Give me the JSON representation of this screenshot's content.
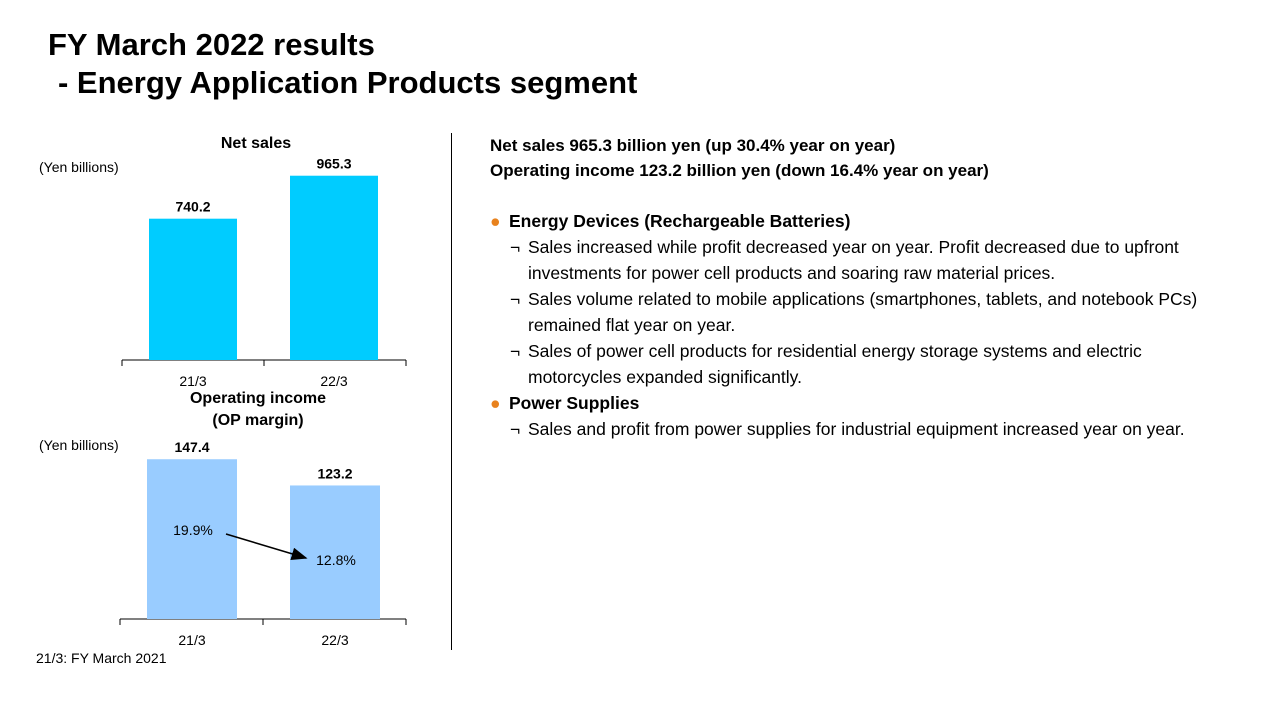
{
  "page": {
    "title_line1": "FY March 2022 results",
    "title_line2": "- Energy Application Products segment",
    "footnote": "21/3: FY March 2021"
  },
  "colors": {
    "net_sales_bar": "#00ccff",
    "op_income_bar": "#99ccff",
    "bullet_dot": "#e8821e"
  },
  "chart_data": [
    {
      "type": "bar",
      "title": "Net sales",
      "ylabel": "(Yen billions)",
      "categories": [
        "21/3",
        "22/3"
      ],
      "values": [
        740.2,
        965.3
      ],
      "value_labels": [
        "740.2",
        "965.3"
      ],
      "ylim": [
        0,
        1100
      ],
      "grid": false,
      "legend": "none"
    },
    {
      "type": "bar",
      "title": "Operating income (OP margin)",
      "title_line1": "Operating income",
      "title_line2": "(OP margin)",
      "ylabel": "(Yen billions)",
      "categories": [
        "21/3",
        "22/3"
      ],
      "values": [
        147.4,
        123.2
      ],
      "value_labels": [
        "147.4",
        "123.2"
      ],
      "margins": [
        "19.9%",
        "12.8%"
      ],
      "ylim": [
        0,
        155
      ],
      "grid": false,
      "legend": "none"
    }
  ],
  "summary": {
    "line1": "Net sales 965.3 billion yen (up 30.4% year on year)",
    "line2": "Operating income 123.2 billion yen (down 16.4% year on year)"
  },
  "sections": {
    "marker": "●",
    "bullet_marker": "¬",
    "energy_devices": {
      "heading": "Energy Devices (Rechargeable Batteries)",
      "bullets": [
        "Sales increased while profit decreased year on year. Profit decreased due to upfront investments for power cell products and soaring raw material prices.",
        "Sales volume related to mobile applications (smartphones, tablets, and notebook PCs) remained flat year on year.",
        "Sales of power cell products for residential energy storage systems and electric motorcycles expanded significantly."
      ]
    },
    "power_supplies": {
      "heading": "Power Supplies",
      "bullets": [
        "Sales and profit from power supplies for industrial equipment increased year on year."
      ]
    }
  }
}
